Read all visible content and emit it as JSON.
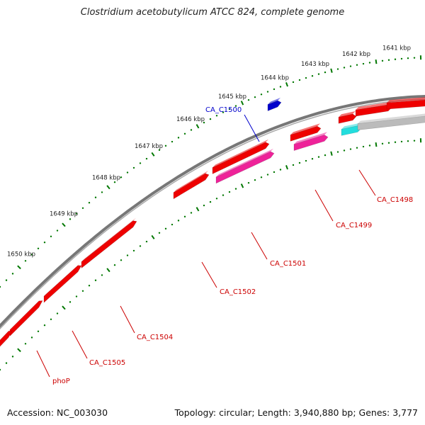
{
  "title": "Clostridium acetobutylicum ATCC 824, complete genome",
  "footer": {
    "accession": "Accession: NC_003030",
    "stats": "Topology: circular; Length: 3,940,880 bp; Genes: 3,777"
  },
  "kbp_labels": [
    "1641 kbp",
    "1642 kbp",
    "1643 kbp",
    "1644 kbp",
    "1645 kbp",
    "1646 kbp",
    "1647 kbp",
    "1648 kbp",
    "1649 kbp",
    "1650 kbp"
  ],
  "gene_labels": [
    "CA_C1498",
    "CA_C1499",
    "CA_C1500",
    "CA_C1501",
    "CA_C1502",
    "CA_C1504",
    "CA_C1505",
    "phoP"
  ],
  "colors": {
    "backbone": "#777777",
    "tick": "#007700",
    "gene_red": "#ee0000",
    "gene_magenta": "#ee2299",
    "gene_cyan": "#22dddd",
    "gene_grey": "#bbbbbb",
    "gene_blue": "#0000cc",
    "label_red": "#cc0000",
    "label_blue": "#0000cc"
  }
}
